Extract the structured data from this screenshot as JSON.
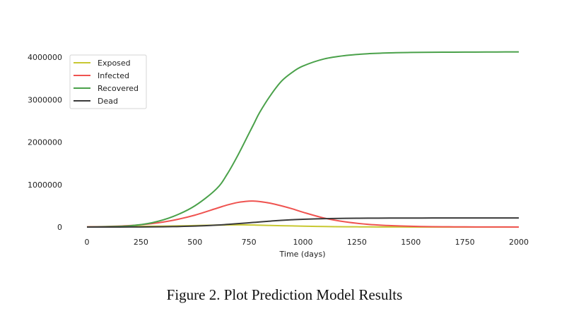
{
  "caption": "Figure 2. Plot Prediction Model Results",
  "chart_data": {
    "type": "line",
    "title": "",
    "xlabel": "Time (days)",
    "ylabel": "",
    "xlim": [
      0,
      2000
    ],
    "ylim": [
      0,
      4200000
    ],
    "x_ticks": [
      0,
      250,
      500,
      750,
      1000,
      1250,
      1500,
      1750,
      2000
    ],
    "y_ticks": [
      0,
      1000000,
      2000000,
      3000000,
      4000000
    ],
    "x_tick_labels": [
      "0",
      "250",
      "500",
      "750",
      "1000",
      "1250",
      "1500",
      "1750",
      "2000"
    ],
    "y_tick_labels": [
      "0",
      "1000000",
      "2000000",
      "3000000",
      "4000000"
    ],
    "grid": false,
    "legend_position": "top-left",
    "x": [
      0,
      100,
      200,
      300,
      400,
      500,
      600,
      650,
      700,
      750,
      775,
      800,
      850,
      900,
      950,
      1000,
      1100,
      1200,
      1300,
      1400,
      1500,
      1600,
      1700,
      1800,
      1900,
      2000
    ],
    "series": [
      {
        "name": "Exposed",
        "color": "#c8c832",
        "values": [
          5000,
          8000,
          12000,
          18000,
          25000,
          35000,
          45000,
          50000,
          52000,
          50000,
          47000,
          44000,
          38000,
          32000,
          26000,
          20000,
          12000,
          7000,
          4000,
          2000,
          1000,
          500,
          200,
          100,
          50,
          20
        ]
      },
      {
        "name": "Infected",
        "color": "#ef5350",
        "values": [
          5000,
          15000,
          35000,
          80000,
          160000,
          280000,
          440000,
          520000,
          580000,
          610000,
          610000,
          600000,
          560000,
          500000,
          430000,
          350000,
          210000,
          120000,
          65000,
          35000,
          18000,
          9000,
          5000,
          3000,
          2000,
          1000
        ]
      },
      {
        "name": "Recovered",
        "color": "#4aa14a",
        "values": [
          0,
          10000,
          30000,
          100000,
          250000,
          500000,
          900000,
          1250000,
          1700000,
          2200000,
          2450000,
          2700000,
          3100000,
          3430000,
          3640000,
          3790000,
          3960000,
          4040000,
          4080000,
          4100000,
          4110000,
          4115000,
          4118000,
          4120000,
          4122000,
          4123000
        ]
      },
      {
        "name": "Dead",
        "color": "#3a3a3a",
        "values": [
          0,
          500,
          1500,
          4000,
          10000,
          22000,
          45000,
          62000,
          80000,
          100000,
          110000,
          120000,
          140000,
          158000,
          172000,
          183000,
          197000,
          205000,
          209000,
          211000,
          212000,
          213000,
          213000,
          213000,
          213000,
          213000
        ]
      }
    ]
  }
}
